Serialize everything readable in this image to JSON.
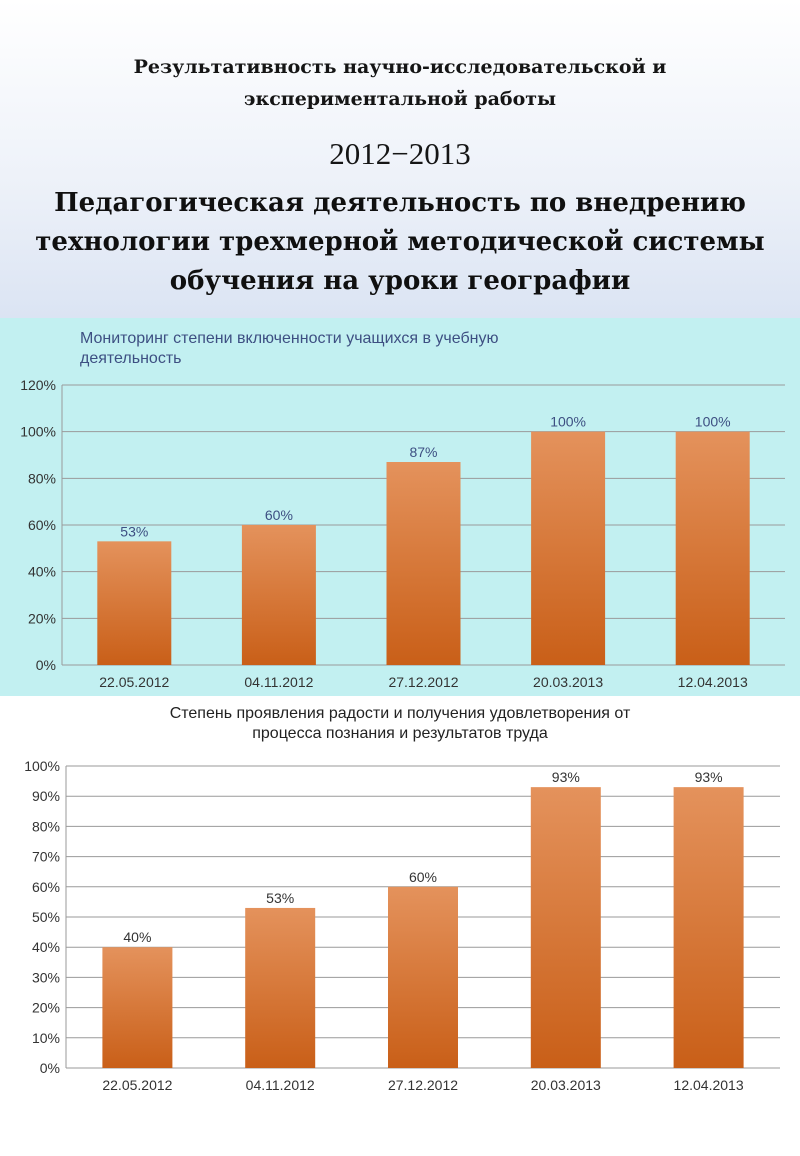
{
  "header": {
    "subtitle_lines": [
      "Результативность научно-исследовательской и",
      "экспериментальной работы"
    ],
    "year": "2012−2013",
    "title_lines": [
      "Педагогическая деятельность по внедрению",
      "технологии  трехмерной методической системы",
      "обучения на уроки географии"
    ]
  },
  "colors": {
    "bar_top": "#e4925c",
    "bar_bottom": "#c95f18",
    "panel1_bg": "#c2f0f1",
    "grid": "#9a9a9a",
    "chart1_title": "#3d4f82",
    "chart2_title": "#222222",
    "label1": "#3d4f82",
    "label2": "#333333"
  },
  "chart_data": [
    {
      "type": "bar",
      "title_lines": [
        "Мониторинг степени включенности учащихся в учебную",
        "деятельность"
      ],
      "categories": [
        "22.05.2012",
        "04.11.2012",
        "27.12.2012",
        "20.03.2013",
        "12.04.2013"
      ],
      "values": [
        53,
        60,
        87,
        100,
        100
      ],
      "data_labels": [
        "53%",
        "60%",
        "87%",
        "100%",
        "100%"
      ],
      "ylim": [
        0,
        120
      ],
      "yticks": [
        0,
        20,
        40,
        60,
        80,
        100,
        120
      ],
      "ytick_labels": [
        "0%",
        "20%",
        "40%",
        "60%",
        "80%",
        "100%",
        "120%"
      ],
      "grid": true
    },
    {
      "type": "bar",
      "title_lines": [
        "Степень проявления радости и получения удовлетворения от",
        "процесса познания и результатов труда"
      ],
      "categories": [
        "22.05.2012",
        "04.11.2012",
        "27.12.2012",
        "20.03.2013",
        "12.04.2013"
      ],
      "values": [
        40,
        53,
        60,
        93,
        93
      ],
      "data_labels": [
        "40%",
        "53%",
        "60%",
        "93%",
        "93%"
      ],
      "ylim": [
        0,
        100
      ],
      "yticks": [
        0,
        10,
        20,
        30,
        40,
        50,
        60,
        70,
        80,
        90,
        100
      ],
      "ytick_labels": [
        "0%",
        "10%",
        "20%",
        "30%",
        "40%",
        "50%",
        "60%",
        "70%",
        "80%",
        "90%",
        "100%"
      ],
      "grid": true
    }
  ]
}
